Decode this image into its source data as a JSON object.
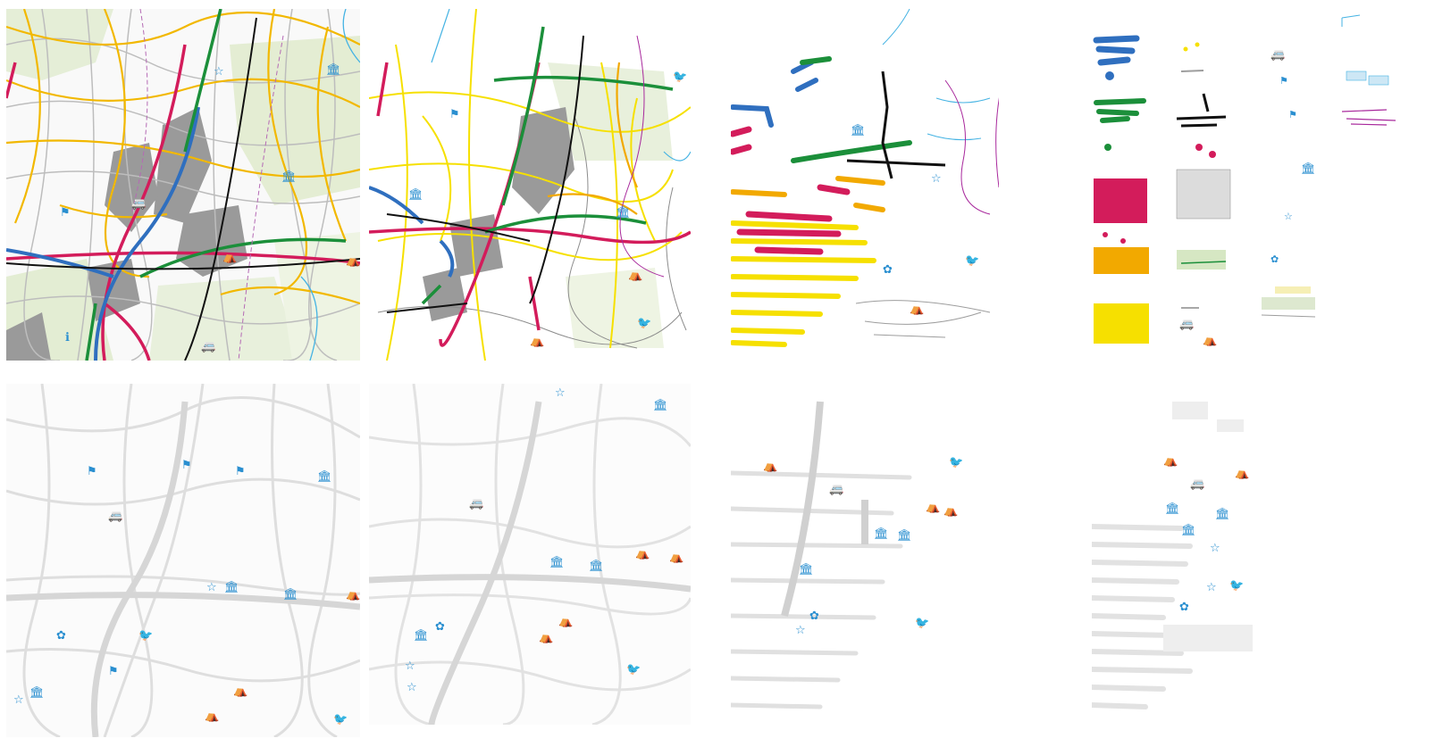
{
  "colors": {
    "motorway": "#2f6fbf",
    "primary": "#d31c5b",
    "secondary": "#f2a900",
    "tertiary": "#f6e000",
    "road_outline": "#8c8c8c",
    "minor": "#b8b8b8",
    "rail": "#111111",
    "green_route": "#1b8f3a",
    "boundary": "#a8289c",
    "water": "#45b3e3",
    "urban": "#8e8e8e",
    "land": "#e3edd3",
    "poi": "#2a8fd0",
    "ghost": "#dedede"
  },
  "panels": [
    {
      "id": "full-map",
      "style": "full"
    },
    {
      "id": "roads-layer",
      "style": "roads"
    },
    {
      "id": "shredded-layer",
      "style": "shredded"
    },
    {
      "id": "legend-strips",
      "style": "strips"
    },
    {
      "id": "ghost-map-1",
      "style": "ghost"
    },
    {
      "id": "ghost-map-2",
      "style": "ghost"
    },
    {
      "id": "ghost-map-3",
      "style": "ghost"
    },
    {
      "id": "ghost-map-4",
      "style": "ghost"
    }
  ],
  "poi_icons": {
    "museum": "🏛",
    "camping": "⛺",
    "caravan": "🚐",
    "flag": "⚑",
    "star": "☆",
    "info": "ℹ",
    "flower": "✿",
    "bird": "🐦"
  }
}
